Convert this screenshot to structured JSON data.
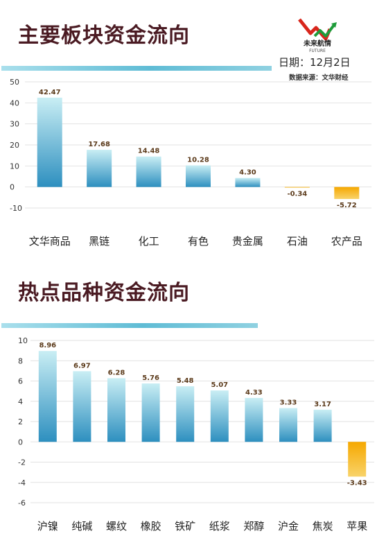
{
  "header": {
    "title1": "主要板块资金流向",
    "title2": "热点品种资金流向",
    "date": "日期：12月2日",
    "source": "数据来源：文华财经",
    "logo_text": "未来航情",
    "logo_sub": "FUTURE"
  },
  "colors": {
    "positive_top": "#c9eef4",
    "positive_bottom": "#2d8fbf",
    "negative_top": "#f6a800",
    "negative_bottom": "#f8d36a",
    "title": "#4a1a22",
    "grid": "#e2e2e2"
  },
  "chart_data": [
    {
      "type": "bar",
      "categories": [
        "文华商品",
        "黑链",
        "化工",
        "有色",
        "贵金属",
        "石油",
        "农产品"
      ],
      "values": [
        42.47,
        17.68,
        14.48,
        10.28,
        4.3,
        -0.34,
        -5.72
      ],
      "value_labels": [
        "42.47",
        "17.68",
        "14.48",
        "10.28",
        "4.30",
        "-0.34",
        "-5.72"
      ],
      "yticks": [
        "50",
        "40",
        "30",
        "20",
        "10",
        "0",
        "-10"
      ],
      "ylim": [
        -10,
        50
      ],
      "grid": true
    },
    {
      "type": "bar",
      "categories": [
        "沪镍",
        "纯碱",
        "螺纹",
        "橡胶",
        "铁矿",
        "纸浆",
        "郑醇",
        "沪金",
        "焦炭",
        "苹果"
      ],
      "values": [
        8.96,
        6.97,
        6.28,
        5.76,
        5.48,
        5.07,
        4.33,
        3.33,
        3.17,
        -3.43
      ],
      "value_labels": [
        "8.96",
        "6.97",
        "6.28",
        "5.76",
        "5.48",
        "5.07",
        "4.33",
        "3.33",
        "3.17",
        "-3.43"
      ],
      "yticks": [
        "10",
        "8",
        "6",
        "4",
        "2",
        "0",
        "-2",
        "-4",
        "-6"
      ],
      "ylim": [
        -6,
        10
      ],
      "grid": true
    }
  ]
}
